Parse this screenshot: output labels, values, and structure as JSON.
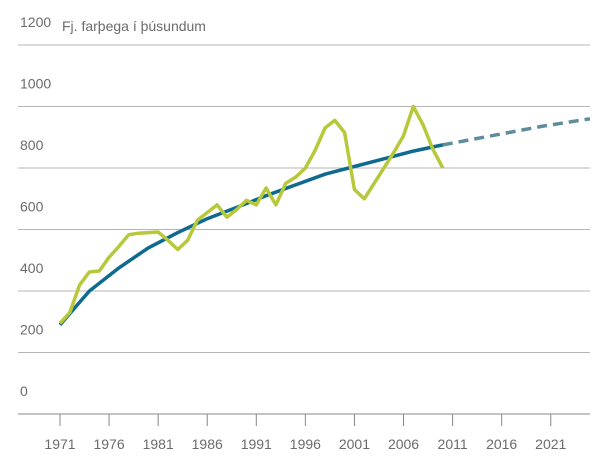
{
  "chart_data": {
    "type": "line",
    "y_label": "Fj. farþega í þúsundum",
    "xlim": [
      1971,
      2025
    ],
    "xticks": [
      1971,
      1976,
      1981,
      1986,
      1991,
      1996,
      2001,
      2006,
      2011,
      2016,
      2021
    ],
    "ylim": [
      0,
      1200
    ],
    "yticks": [
      0,
      200,
      400,
      600,
      800,
      1000,
      1200
    ],
    "grid": true,
    "series": [
      {
        "color": "#b7c83a",
        "style": "solid",
        "x": [
          1971,
          1972,
          1973,
          1974,
          1975,
          1976,
          1977,
          1978,
          1979,
          1980,
          1981,
          1982,
          1983,
          1984,
          1985,
          1986,
          1987,
          1988,
          1989,
          1990,
          1991,
          1992,
          1993,
          1994,
          1995,
          1996,
          1997,
          1998,
          1999,
          2000,
          2001,
          2002,
          2003,
          2004,
          2005,
          2006,
          2007,
          2008,
          2009,
          2010
        ],
        "values": [
          295,
          330,
          420,
          462,
          465,
          510,
          545,
          583,
          588,
          590,
          592,
          565,
          535,
          565,
          630,
          655,
          680,
          640,
          665,
          695,
          680,
          735,
          680,
          750,
          770,
          800,
          858,
          930,
          955,
          915,
          730,
          700,
          750,
          800,
          850,
          905,
          1000,
          940,
          860,
          800
        ]
      },
      {
        "color": "#0e6a8e",
        "style": "solid",
        "x": [
          1971,
          1974,
          1977,
          1980,
          1983,
          1986,
          1989,
          1992,
          1995,
          1998,
          2001,
          2004,
          2007,
          2010
        ],
        "values": [
          290,
          400,
          475,
          540,
          590,
          635,
          672,
          710,
          745,
          780,
          805,
          830,
          855,
          875
        ]
      },
      {
        "color": "#5e8c9c",
        "style": "dashed",
        "x": [
          2010,
          2015,
          2020,
          2025
        ],
        "values": [
          875,
          905,
          935,
          960
        ]
      }
    ]
  }
}
